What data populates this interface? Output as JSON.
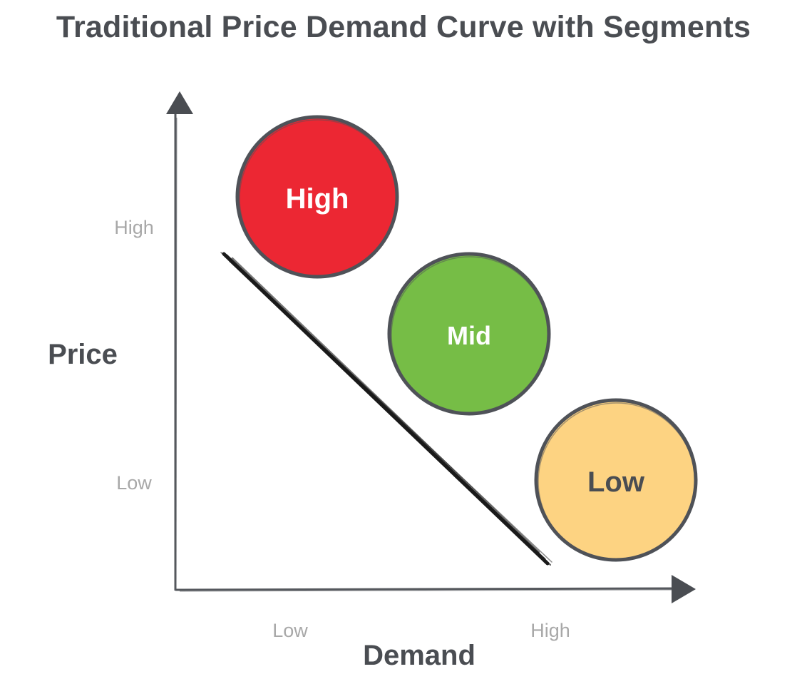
{
  "title": "Traditional Price Demand Curve with Segments",
  "axes": {
    "y_title": "Price",
    "x_title": "Demand",
    "y_ticks": [
      "High",
      "Low"
    ],
    "x_ticks": [
      "Low",
      "High"
    ]
  },
  "segments": [
    {
      "label": "High",
      "fill": "#ec2733",
      "text_color": "#ffffff"
    },
    {
      "label": "Mid",
      "fill": "#76bd46",
      "text_color": "#ffffff"
    },
    {
      "label": "Low",
      "fill": "#fdd382",
      "text_color": "#4a4d52"
    }
  ],
  "colors": {
    "axis": "#55585d",
    "curve": "#1a1a1a",
    "outline": "#4f5258"
  }
}
